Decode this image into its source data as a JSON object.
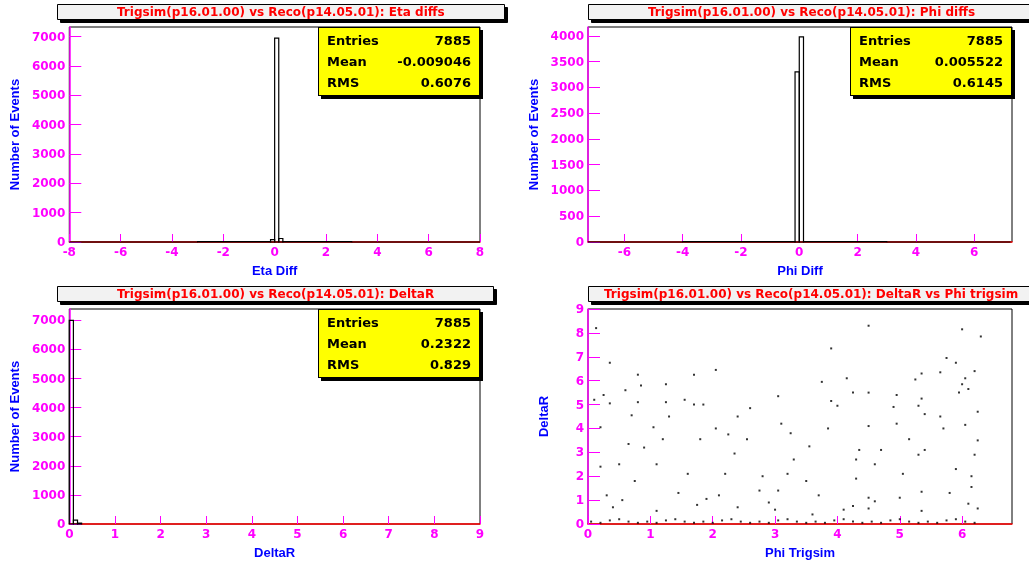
{
  "chart_data": [
    {
      "type": "histogram",
      "title": "Trigsim(p16.01.00) vs Reco(p14.05.01): Eta diffs",
      "xlabel": "Eta Diff",
      "ylabel": "Number of Events",
      "color": "#000000",
      "bins": [
        -8,
        -3,
        -0.16,
        0,
        0.16,
        0.32,
        3,
        8
      ],
      "values": [
        0,
        10,
        80,
        6950,
        120,
        10,
        0
      ],
      "xlim": [
        -8,
        8
      ],
      "xticks": [
        -8,
        -6,
        -4,
        -2,
        0,
        2,
        4,
        6,
        8
      ],
      "ylim": [
        0,
        7330
      ],
      "yticks": [
        0,
        1000,
        2000,
        3000,
        4000,
        5000,
        6000,
        7000
      ],
      "annotations": [
        "Entries 7885",
        "Mean -0.009046",
        "RMS 0.6076"
      ]
    },
    {
      "type": "histogram",
      "title": "Trigsim(p16.01.00) vs Reco(p14.05.01): Phi diffs",
      "xlabel": "Phi Diff",
      "ylabel": "Number of Events",
      "color": "#000000",
      "bins": [
        -7.25,
        -4,
        -0.145,
        0,
        0.145,
        3,
        7.25
      ],
      "values": [
        0,
        10,
        3300,
        3980,
        10,
        0
      ],
      "xlim": [
        -7.25,
        7.3
      ],
      "xticks": [
        -6,
        -4,
        -2,
        0,
        2,
        4,
        6
      ],
      "ylim": [
        0,
        4170
      ],
      "yticks": [
        0,
        500,
        1000,
        1500,
        2000,
        2500,
        3000,
        3500,
        4000
      ],
      "annotations": [
        "Entries 7885",
        "Mean 0.005522",
        "RMS 0.6145"
      ]
    },
    {
      "type": "histogram",
      "title": "Trigsim(p16.01.00) vs Reco(p14.05.01): DeltaR",
      "xlabel": "DeltaR",
      "ylabel": "Number of Events",
      "color": "#000000",
      "bins": [
        0,
        0.09,
        0.18,
        0.27
      ],
      "values": [
        7000,
        130,
        30
      ],
      "xlim": [
        0,
        9
      ],
      "xticks": [
        0,
        1,
        2,
        3,
        4,
        5,
        6,
        7,
        8,
        9
      ],
      "ylim": [
        0,
        7390
      ],
      "yticks": [
        0,
        1000,
        2000,
        3000,
        4000,
        5000,
        6000,
        7000
      ],
      "annotations": [
        "Entries 7885",
        "Mean 0.2322",
        "RMS 0.829"
      ]
    },
    {
      "type": "scatter",
      "title": "Trigsim(p16.01.00) vs Reco(p14.05.01): DeltaR vs Phi trigsim",
      "xlabel": "Phi Trigsim",
      "ylabel": "DeltaR",
      "color": "#000000",
      "marker": "square",
      "x": [
        4.5,
        6.0,
        6.3,
        0.13,
        3.9,
        5.75,
        5.9,
        0.35,
        2.05,
        6.2,
        5.65,
        0.8,
        1.7,
        4.15,
        5.25,
        6.05,
        5.35,
        3.75,
        1.25,
        0.85,
        6.0,
        6.1,
        0.6,
        4.25,
        4.5,
        5.95,
        3.05,
        4.95,
        0.25,
        1.55,
        0.1,
        0.35,
        0.8,
        1.25,
        3.9,
        5.35,
        1.7,
        1.85,
        4.0,
        2.6,
        4.9,
        5.3,
        0.7,
        1.3,
        2.4,
        5.4,
        5.65,
        6.25,
        0.2,
        1.05,
        2.05,
        2.25,
        3.25,
        3.85,
        4.5,
        4.95,
        5.7,
        6.05,
        0.9,
        1.2,
        1.8,
        2.55,
        3.1,
        3.55,
        4.35,
        5.15,
        5.4,
        6.25,
        0.2,
        0.5,
        1.1,
        1.6,
        2.2,
        2.8,
        3.2,
        3.5,
        4.3,
        4.6,
        5.05,
        5.9,
        6.15,
        0.3,
        0.75,
        1.45,
        2.1,
        2.75,
        3.05,
        3.7,
        4.5,
        4.6,
        5.35,
        5.8,
        6.15,
        0.4,
        1.1,
        1.75,
        2.4,
        3.0,
        3.6,
        4.1,
        4.5,
        5.35,
        6.25,
        6.1,
        4.25,
        2.9,
        1.9,
        0.55,
        5.0,
        4.7,
        0.65,
        2.35,
        3.3,
        4.3,
        5.3,
        6.2,
        0.05,
        0.2,
        0.35,
        0.5,
        0.65,
        0.8,
        0.95,
        1.1,
        1.25,
        1.4,
        1.55,
        1.7,
        1.85,
        2.0,
        2.15,
        2.3,
        2.45,
        2.6,
        2.75,
        2.9,
        3.05,
        3.2,
        3.35,
        3.5,
        3.65,
        3.8,
        3.95,
        4.1,
        4.25,
        4.4,
        4.55,
        4.7,
        4.85,
        5.0,
        5.15,
        5.3,
        5.45,
        5.6,
        5.75,
        5.9,
        6.05,
        6.2
      ],
      "values": [
        8.3,
        8.15,
        7.85,
        8.2,
        7.35,
        6.95,
        6.75,
        6.75,
        6.45,
        6.4,
        6.35,
        6.25,
        6.25,
        6.1,
        6.05,
        6.1,
        6.3,
        5.95,
        5.85,
        5.8,
        5.85,
        5.65,
        5.6,
        5.5,
        5.5,
        5.5,
        5.35,
        5.4,
        5.4,
        5.2,
        5.2,
        5.05,
        5.1,
        5.1,
        5.15,
        5.25,
        5.0,
        5.0,
        4.95,
        4.85,
        4.9,
        4.95,
        4.55,
        4.5,
        4.5,
        4.6,
        4.5,
        4.7,
        4.05,
        4.05,
        4.0,
        3.75,
        3.8,
        4.0,
        4.1,
        4.2,
        4.0,
        4.15,
        3.2,
        3.55,
        3.55,
        3.55,
        4.2,
        3.25,
        3.1,
        3.55,
        3.1,
        3.5,
        2.4,
        2.5,
        2.5,
        2.1,
        2.1,
        2.0,
        2.1,
        1.8,
        1.9,
        2.5,
        2.1,
        2.3,
        2.0,
        1.2,
        1.8,
        1.3,
        1.2,
        1.4,
        1.4,
        1.2,
        1.1,
        0.95,
        1.35,
        1.3,
        1.55,
        0.7,
        0.55,
        0.8,
        0.7,
        0.6,
        0.4,
        0.6,
        0.65,
        0.55,
        0.65,
        0.85,
        0.75,
        0.9,
        1.05,
        1.0,
        1.1,
        3.1,
        3.35,
        2.95,
        2.7,
        2.7,
        2.9,
        2.9,
        0.1,
        0.05,
        0.15,
        0.2,
        0.1,
        0.05,
        0.1,
        0.05,
        0.15,
        0.2,
        0.1,
        0.05,
        0.1,
        0.05,
        0.15,
        0.2,
        0.1,
        0.05,
        0.1,
        0.05,
        0.15,
        0.2,
        0.1,
        0.05,
        0.1,
        0.05,
        0.15,
        0.2,
        0.1,
        0.05,
        0.1,
        0.05,
        0.15,
        0.2,
        0.1,
        0.05,
        0.1,
        0.05,
        0.15,
        0.2,
        0.1,
        0.05
      ],
      "xlim": [
        0,
        6.8
      ],
      "xticks": [
        0,
        1,
        2,
        3,
        4,
        5,
        6
      ],
      "ylim": [
        0,
        9
      ],
      "yticks": [
        0,
        1,
        2,
        3,
        4,
        5,
        6,
        7,
        8,
        9
      ]
    }
  ]
}
